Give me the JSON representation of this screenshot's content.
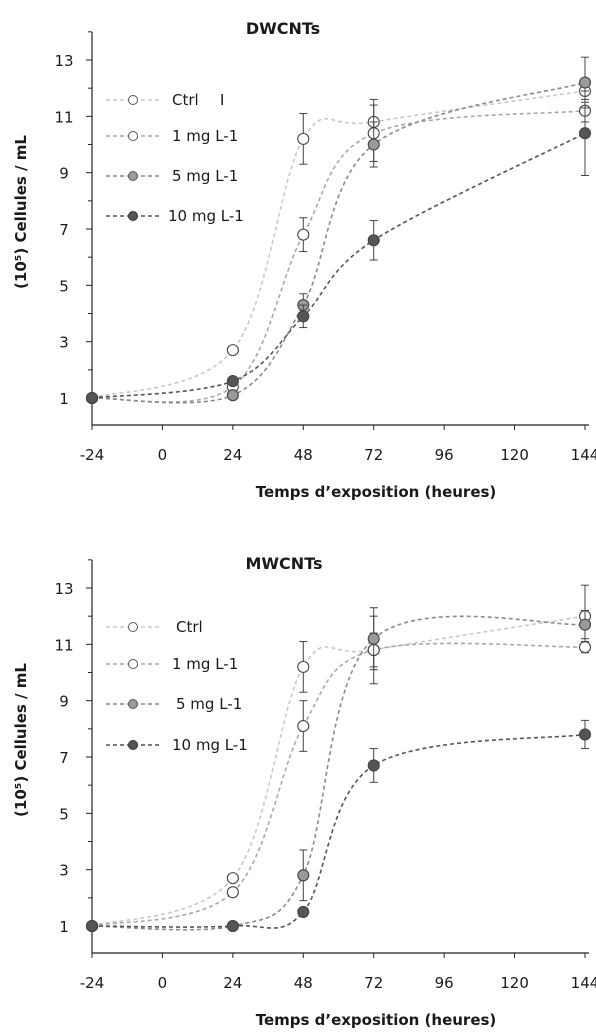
{
  "chart_data": [
    {
      "type": "line",
      "title": "DWCNTs",
      "xlabel": "Temps d’exposition  (heures)",
      "ylabel": "(10⁵) Cellules  / mL",
      "xticks": [
        "-24",
        "0",
        "24",
        "48",
        "72",
        "96",
        "120",
        "144"
      ],
      "yticks": [
        "1",
        "3",
        "5",
        "7",
        "9",
        "11",
        "13"
      ],
      "xlim": [
        -24,
        144
      ],
      "ylim": [
        0.3,
        14
      ],
      "legend_position": "top-left",
      "extra_mark": "I",
      "series": [
        {
          "name": "Ctrl",
          "color": "#ffffff",
          "line_color": "#c8c8c8",
          "x": [
            -24,
            24,
            48,
            72,
            144
          ],
          "y": [
            1.0,
            2.7,
            10.2,
            10.8,
            11.9
          ],
          "err": [
            0,
            0,
            0.9,
            0.8,
            0.4
          ]
        },
        {
          "name": "1 mg L-1",
          "color": "#ffffff",
          "line_color": "#a8a8a8",
          "x": [
            -24,
            24,
            48,
            72,
            144
          ],
          "y": [
            1.0,
            1.4,
            6.8,
            10.4,
            11.2
          ],
          "err": [
            0,
            0,
            0.6,
            1.0,
            0.4
          ]
        },
        {
          "name": "5 mg L-1",
          "color": "#9a9a9a",
          "line_color": "#8a8a8a",
          "x": [
            -24,
            24,
            48,
            72,
            144
          ],
          "y": [
            1.0,
            1.1,
            4.3,
            10.0,
            12.2
          ],
          "err": [
            0,
            0,
            0.4,
            0.8,
            0.9
          ]
        },
        {
          "name": "10 mg L-1",
          "color": "#555555",
          "line_color": "#555555",
          "x": [
            -24,
            24,
            48,
            72,
            144
          ],
          "y": [
            1.0,
            1.6,
            3.9,
            6.6,
            10.4
          ],
          "err": [
            0,
            0,
            0.4,
            0.7,
            1.5
          ]
        }
      ]
    },
    {
      "type": "line",
      "title": "MWCNTs",
      "xlabel": "Temps d’exposition  (heures)",
      "ylabel": "(10⁵) Cellules  / mL",
      "xticks": [
        "-24",
        "0",
        "24",
        "48",
        "72",
        "96",
        "120",
        "144"
      ],
      "yticks": [
        "1",
        "3",
        "5",
        "7",
        "9",
        "11",
        "13"
      ],
      "xlim": [
        -24,
        144
      ],
      "ylim": [
        0.3,
        14
      ],
      "legend_position": "top-left",
      "extra_mark": "",
      "series": [
        {
          "name": "Ctrl",
          "color": "#ffffff",
          "line_color": "#c8c8c8",
          "x": [
            -24,
            24,
            48,
            72,
            144
          ],
          "y": [
            1.0,
            2.7,
            10.2,
            10.8,
            12.0
          ],
          "err": [
            0,
            0,
            0.9,
            0.6,
            1.1
          ]
        },
        {
          "name": "1 mg L-1",
          "color": "#ffffff",
          "line_color": "#a8a8a8",
          "x": [
            -24,
            24,
            48,
            72,
            144
          ],
          "y": [
            1.0,
            2.2,
            8.1,
            10.8,
            10.9
          ],
          "err": [
            0,
            0,
            0.9,
            1.2,
            0.2
          ]
        },
        {
          "name": "5 mg L-1",
          "color": "#9a9a9a",
          "line_color": "#8a8a8a",
          "x": [
            -24,
            24,
            48,
            72,
            144
          ],
          "y": [
            1.0,
            1.0,
            2.8,
            11.2,
            11.7
          ],
          "err": [
            0,
            0,
            0.9,
            1.1,
            0.5
          ]
        },
        {
          "name": "10 mg L-1",
          "color": "#555555",
          "line_color": "#555555",
          "x": [
            -24,
            24,
            48,
            72,
            144
          ],
          "y": [
            1.0,
            1.0,
            1.5,
            6.7,
            7.8
          ],
          "err": [
            0,
            0,
            0,
            0.6,
            0.5
          ]
        }
      ]
    }
  ]
}
